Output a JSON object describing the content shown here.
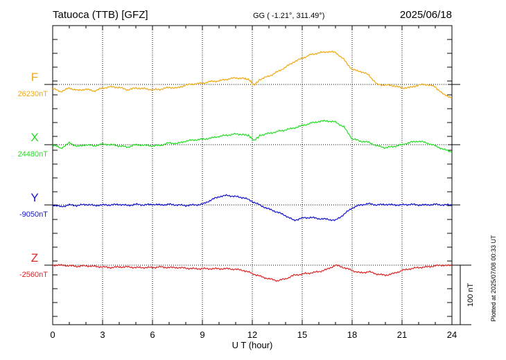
{
  "header": {
    "station": "Tatuoca (TTB)  [GFZ]",
    "coords": "GG ( -1.21°, 311.49°)",
    "date": "2025/06/18"
  },
  "footer": {
    "plotted": "Plotted at 2025/07/08 00:33 UT"
  },
  "chart_data": {
    "type": "line",
    "xlabel": "U T (hour)",
    "xlim": [
      0,
      24
    ],
    "xticks": [
      "0",
      "3",
      "6",
      "9",
      "12",
      "15",
      "18",
      "21",
      "24"
    ],
    "grid": true,
    "scale_bar": {
      "label": "100 nT",
      "value_nT": 100
    },
    "series": [
      {
        "name": "F",
        "baseline_label": "26230nT",
        "baseline_nT": 26230,
        "color": "#f0a810",
        "x": [
          0,
          0.5,
          1,
          1.5,
          2,
          2.5,
          3,
          3.5,
          4,
          4.5,
          5,
          5.5,
          6,
          6.5,
          7,
          7.5,
          8,
          8.5,
          9,
          9.5,
          10,
          10.5,
          11,
          11.5,
          11.8,
          12.1,
          12.5,
          13,
          13.5,
          14,
          14.5,
          15,
          15.5,
          16,
          16.5,
          17,
          17.5,
          18,
          18.5,
          19,
          19.5,
          20,
          20.5,
          21,
          21.5,
          22,
          22.5,
          23,
          23.5,
          24
        ],
        "values": [
          26223,
          26218,
          26224,
          26220,
          26222,
          26219,
          26224,
          26226,
          26225,
          26221,
          26224,
          26223,
          26221,
          26222,
          26225,
          26224,
          26229,
          26231,
          26232,
          26235,
          26236,
          26239,
          26241,
          26240,
          26238,
          26229,
          26239,
          26244,
          26251,
          26259,
          26268,
          26274,
          26280,
          26283,
          26285,
          26284,
          26272,
          26255,
          26252,
          26246,
          26230,
          26229,
          26228,
          26224,
          26225,
          26229,
          26230,
          26226,
          26213,
          26208
        ]
      },
      {
        "name": "X",
        "baseline_label": "24480nT",
        "baseline_nT": 24480,
        "color": "#22dd22",
        "x": [
          0,
          0.5,
          1,
          1.5,
          2,
          2.5,
          3,
          3.5,
          4,
          4.5,
          5,
          5.5,
          6,
          6.5,
          7,
          7.5,
          8,
          8.5,
          9,
          9.5,
          10,
          10.5,
          11,
          11.5,
          11.8,
          12.1,
          12.5,
          13,
          13.5,
          14,
          14.5,
          15,
          15.5,
          16,
          16.5,
          17,
          17.5,
          18,
          18.5,
          19,
          19.5,
          20,
          20.5,
          21,
          21.5,
          22,
          22.5,
          23,
          23.5,
          24
        ],
        "values": [
          24480,
          24474,
          24483,
          24477,
          24480,
          24478,
          24481,
          24480,
          24478,
          24476,
          24480,
          24479,
          24478,
          24479,
          24483,
          24482,
          24486,
          24488,
          24489,
          24491,
          24494,
          24496,
          24498,
          24497,
          24495,
          24487,
          24496,
          24499,
          24502,
          24505,
          24508,
          24512,
          24516,
          24519,
          24520,
          24518,
          24510,
          24490,
          24486,
          24484,
          24478,
          24475,
          24477,
          24480,
          24484,
          24486,
          24483,
          24478,
          24472,
          24468
        ]
      },
      {
        "name": "Y",
        "baseline_label": "-9050nT",
        "baseline_nT": -9050,
        "color": "#1010cc",
        "x": [
          0,
          0.5,
          1,
          1.5,
          2,
          2.5,
          3,
          3.5,
          4,
          4.5,
          5,
          5.5,
          6,
          6.5,
          7,
          7.5,
          8,
          8.5,
          9,
          9.5,
          10,
          10.5,
          11,
          11.5,
          12,
          12.5,
          13,
          13.5,
          14,
          14.5,
          15,
          15.5,
          16,
          16.5,
          17,
          17.5,
          18,
          18.5,
          19,
          19.5,
          20,
          20.5,
          21,
          21.5,
          22,
          22.5,
          23,
          23.5,
          24
        ],
        "values": [
          -9050,
          -9053,
          -9050,
          -9051,
          -9049,
          -9051,
          -9050,
          -9050,
          -9049,
          -9051,
          -9049,
          -9050,
          -9049,
          -9050,
          -9049,
          -9050,
          -9051,
          -9050,
          -9049,
          -9042,
          -9036,
          -9034,
          -9036,
          -9038,
          -9044,
          -9051,
          -9057,
          -9062,
          -9068,
          -9076,
          -9072,
          -9071,
          -9073,
          -9074,
          -9076,
          -9066,
          -9055,
          -9050,
          -9048,
          -9050,
          -9049,
          -9050,
          -9050,
          -9049,
          -9050,
          -9050,
          -9049,
          -9050,
          -9050
        ]
      },
      {
        "name": "Z",
        "baseline_label": "-2560nT",
        "baseline_nT": -2560,
        "color": "#dd2222",
        "x": [
          0,
          0.5,
          1,
          1.5,
          2,
          2.5,
          3,
          3.5,
          4,
          4.5,
          5,
          5.5,
          6,
          6.5,
          7,
          7.5,
          8,
          8.5,
          9,
          9.5,
          10,
          10.5,
          11,
          11.5,
          12,
          12.5,
          13,
          13.5,
          14,
          14.5,
          15,
          15.5,
          16,
          16.5,
          17,
          17.5,
          18,
          18.5,
          19,
          19.5,
          20,
          20.5,
          21,
          21.5,
          22,
          22.5,
          23,
          23.5,
          24
        ],
        "values": [
          -2560,
          -2560,
          -2561,
          -2562,
          -2561,
          -2562,
          -2563,
          -2564,
          -2563,
          -2563,
          -2564,
          -2564,
          -2564,
          -2563,
          -2564,
          -2564,
          -2565,
          -2566,
          -2566,
          -2566,
          -2566,
          -2566,
          -2567,
          -2569,
          -2574,
          -2579,
          -2583,
          -2586,
          -2583,
          -2577,
          -2575,
          -2573,
          -2571,
          -2567,
          -2560,
          -2564,
          -2569,
          -2573,
          -2571,
          -2575,
          -2577,
          -2574,
          -2569,
          -2566,
          -2564,
          -2563,
          -2561,
          -2560,
          -2561
        ]
      }
    ]
  }
}
